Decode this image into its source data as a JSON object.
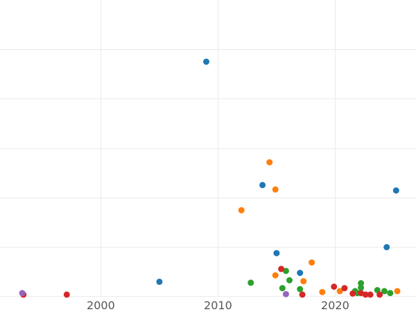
{
  "chart_data": {
    "type": "scatter",
    "title": "",
    "xlabel": "",
    "ylabel": "",
    "x_ticks": [
      2000,
      2010,
      2020
    ],
    "xlim": [
      1991.4,
      2026.9
    ],
    "ylim": [
      0,
      600
    ],
    "y_gridlines": [
      0,
      100,
      200,
      300,
      400,
      500
    ],
    "grid": true,
    "colors": [
      "#1f77b4",
      "#ff7f0e",
      "#2ca02c",
      "#d62728",
      "#9467bd"
    ],
    "series": [
      {
        "color": "#1f77b4",
        "points": [
          [
            2005.0,
            29
          ],
          [
            2009.0,
            475
          ],
          [
            2013.8,
            225
          ],
          [
            2015.0,
            87
          ],
          [
            2017.0,
            47
          ],
          [
            2024.4,
            99
          ],
          [
            2025.2,
            214
          ]
        ]
      },
      {
        "color": "#ff7f0e",
        "points": [
          [
            2012.0,
            174
          ],
          [
            2014.4,
            271
          ],
          [
            2014.9,
            216
          ],
          [
            2014.9,
            42
          ],
          [
            2017.3,
            30
          ],
          [
            2018.0,
            68
          ],
          [
            2018.9,
            8
          ],
          [
            2020.4,
            10
          ],
          [
            2025.3,
            10
          ]
        ]
      },
      {
        "color": "#2ca02c",
        "points": [
          [
            2012.8,
            27
          ],
          [
            2015.5,
            16
          ],
          [
            2015.8,
            51
          ],
          [
            2016.1,
            32
          ],
          [
            2017.0,
            14
          ],
          [
            2021.7,
            10
          ],
          [
            2022.2,
            26
          ],
          [
            2022.2,
            17
          ],
          [
            2023.6,
            12
          ],
          [
            2024.2,
            10
          ],
          [
            2024.7,
            6
          ],
          [
            2021.9,
            6
          ]
        ]
      },
      {
        "color": "#d62728",
        "points": [
          [
            1993.4,
            3
          ],
          [
            1997.1,
            3
          ],
          [
            2015.4,
            55
          ],
          [
            2017.2,
            3
          ],
          [
            2019.9,
            19
          ],
          [
            2020.8,
            16
          ],
          [
            2021.5,
            5
          ],
          [
            2022.2,
            6
          ],
          [
            2022.6,
            3
          ],
          [
            2023.0,
            3
          ],
          [
            2023.8,
            3
          ]
        ]
      },
      {
        "color": "#9467bd",
        "points": [
          [
            1993.3,
            6
          ],
          [
            2015.8,
            4
          ]
        ]
      }
    ]
  }
}
